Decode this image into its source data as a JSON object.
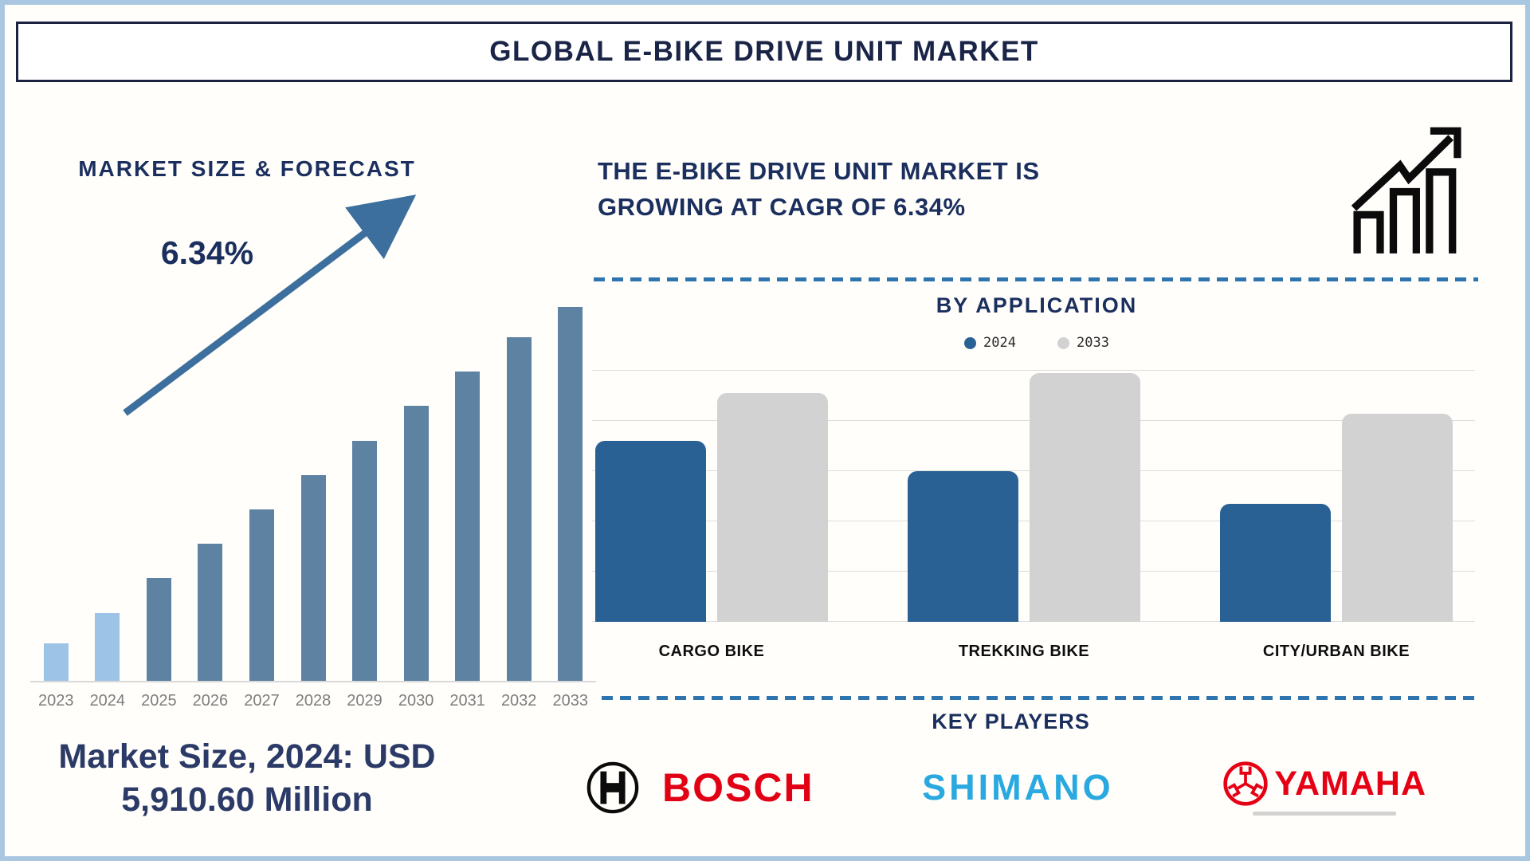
{
  "page": {
    "title": "GLOBAL E-BIKE DRIVE UNIT MARKET"
  },
  "left_panel": {
    "heading": "MARKET SIZE & FORECAST",
    "cagr_label": "6.34%",
    "market_size_line1": "Market Size, 2024: USD",
    "market_size_line2": "5,910.60 Million"
  },
  "right_panel": {
    "heading_line1": "THE E-BIKE DRIVE UNIT MARKET IS",
    "heading_line2": "GROWING AT CAGR OF 6.34%",
    "by_application_title": "BY APPLICATION",
    "key_players_title": "KEY PLAYERS",
    "key_players": [
      "BOSCH",
      "SHIMANO",
      "YAMAHA"
    ]
  },
  "colors": {
    "navy_text": "#1b2f5e",
    "title_navy": "#1a2446",
    "frame_blue": "#aac7e2",
    "dashed_blue": "#2e74ae",
    "left_bar_light": "#9dc3e6",
    "left_bar_dark": "#5e82a2",
    "arrow_blue": "#3c6f9e",
    "app_bar_2024": "#2a6194",
    "app_bar_2033": "#d2d2d2",
    "year_gray": "#7d7d7d",
    "bosch_red": "#e20015",
    "shimano_cyan": "#2aa9e0",
    "yamaha_red": "#e60013"
  },
  "chart_data": [
    {
      "type": "bar",
      "title": "MARKET SIZE & FORECAST",
      "categories": [
        "2023",
        "2024",
        "2025",
        "2026",
        "2027",
        "2028",
        "2029",
        "2030",
        "2031",
        "2032",
        "2033"
      ],
      "values": [
        10,
        18,
        27,
        36,
        45,
        54,
        63,
        72,
        81,
        90,
        98
      ],
      "units": "relative bar height % (stylized infographic, no y-axis shown)",
      "bar_colors": [
        "#9dc3e6",
        "#9dc3e6",
        "#5e82a2",
        "#5e82a2",
        "#5e82a2",
        "#5e82a2",
        "#5e82a2",
        "#5e82a2",
        "#5e82a2",
        "#5e82a2",
        "#5e82a2"
      ],
      "cagr_pct": 6.34,
      "market_size_2024_usd_million": 5910.6,
      "annotations": [
        "6.34%",
        "Market Size, 2024: USD 5,910.60 Million"
      ],
      "grid": false,
      "legend": "none",
      "xlabel": "",
      "ylabel": ""
    },
    {
      "type": "bar",
      "title": "BY APPLICATION",
      "categories": [
        "CARGO BIKE",
        "TREKKING BIKE",
        "CITY/URBAN BIKE"
      ],
      "series": [
        {
          "name": "2024",
          "color": "#2a6194",
          "values": [
            72,
            60,
            47
          ]
        },
        {
          "name": "2033",
          "color": "#d2d2d2",
          "values": [
            91,
            99,
            83
          ]
        }
      ],
      "units": "relative bar height % (no y-axis labels shown)",
      "ylim": [
        0,
        100
      ],
      "grid": true,
      "legend_position": "top",
      "xlabel": "",
      "ylabel": ""
    }
  ]
}
